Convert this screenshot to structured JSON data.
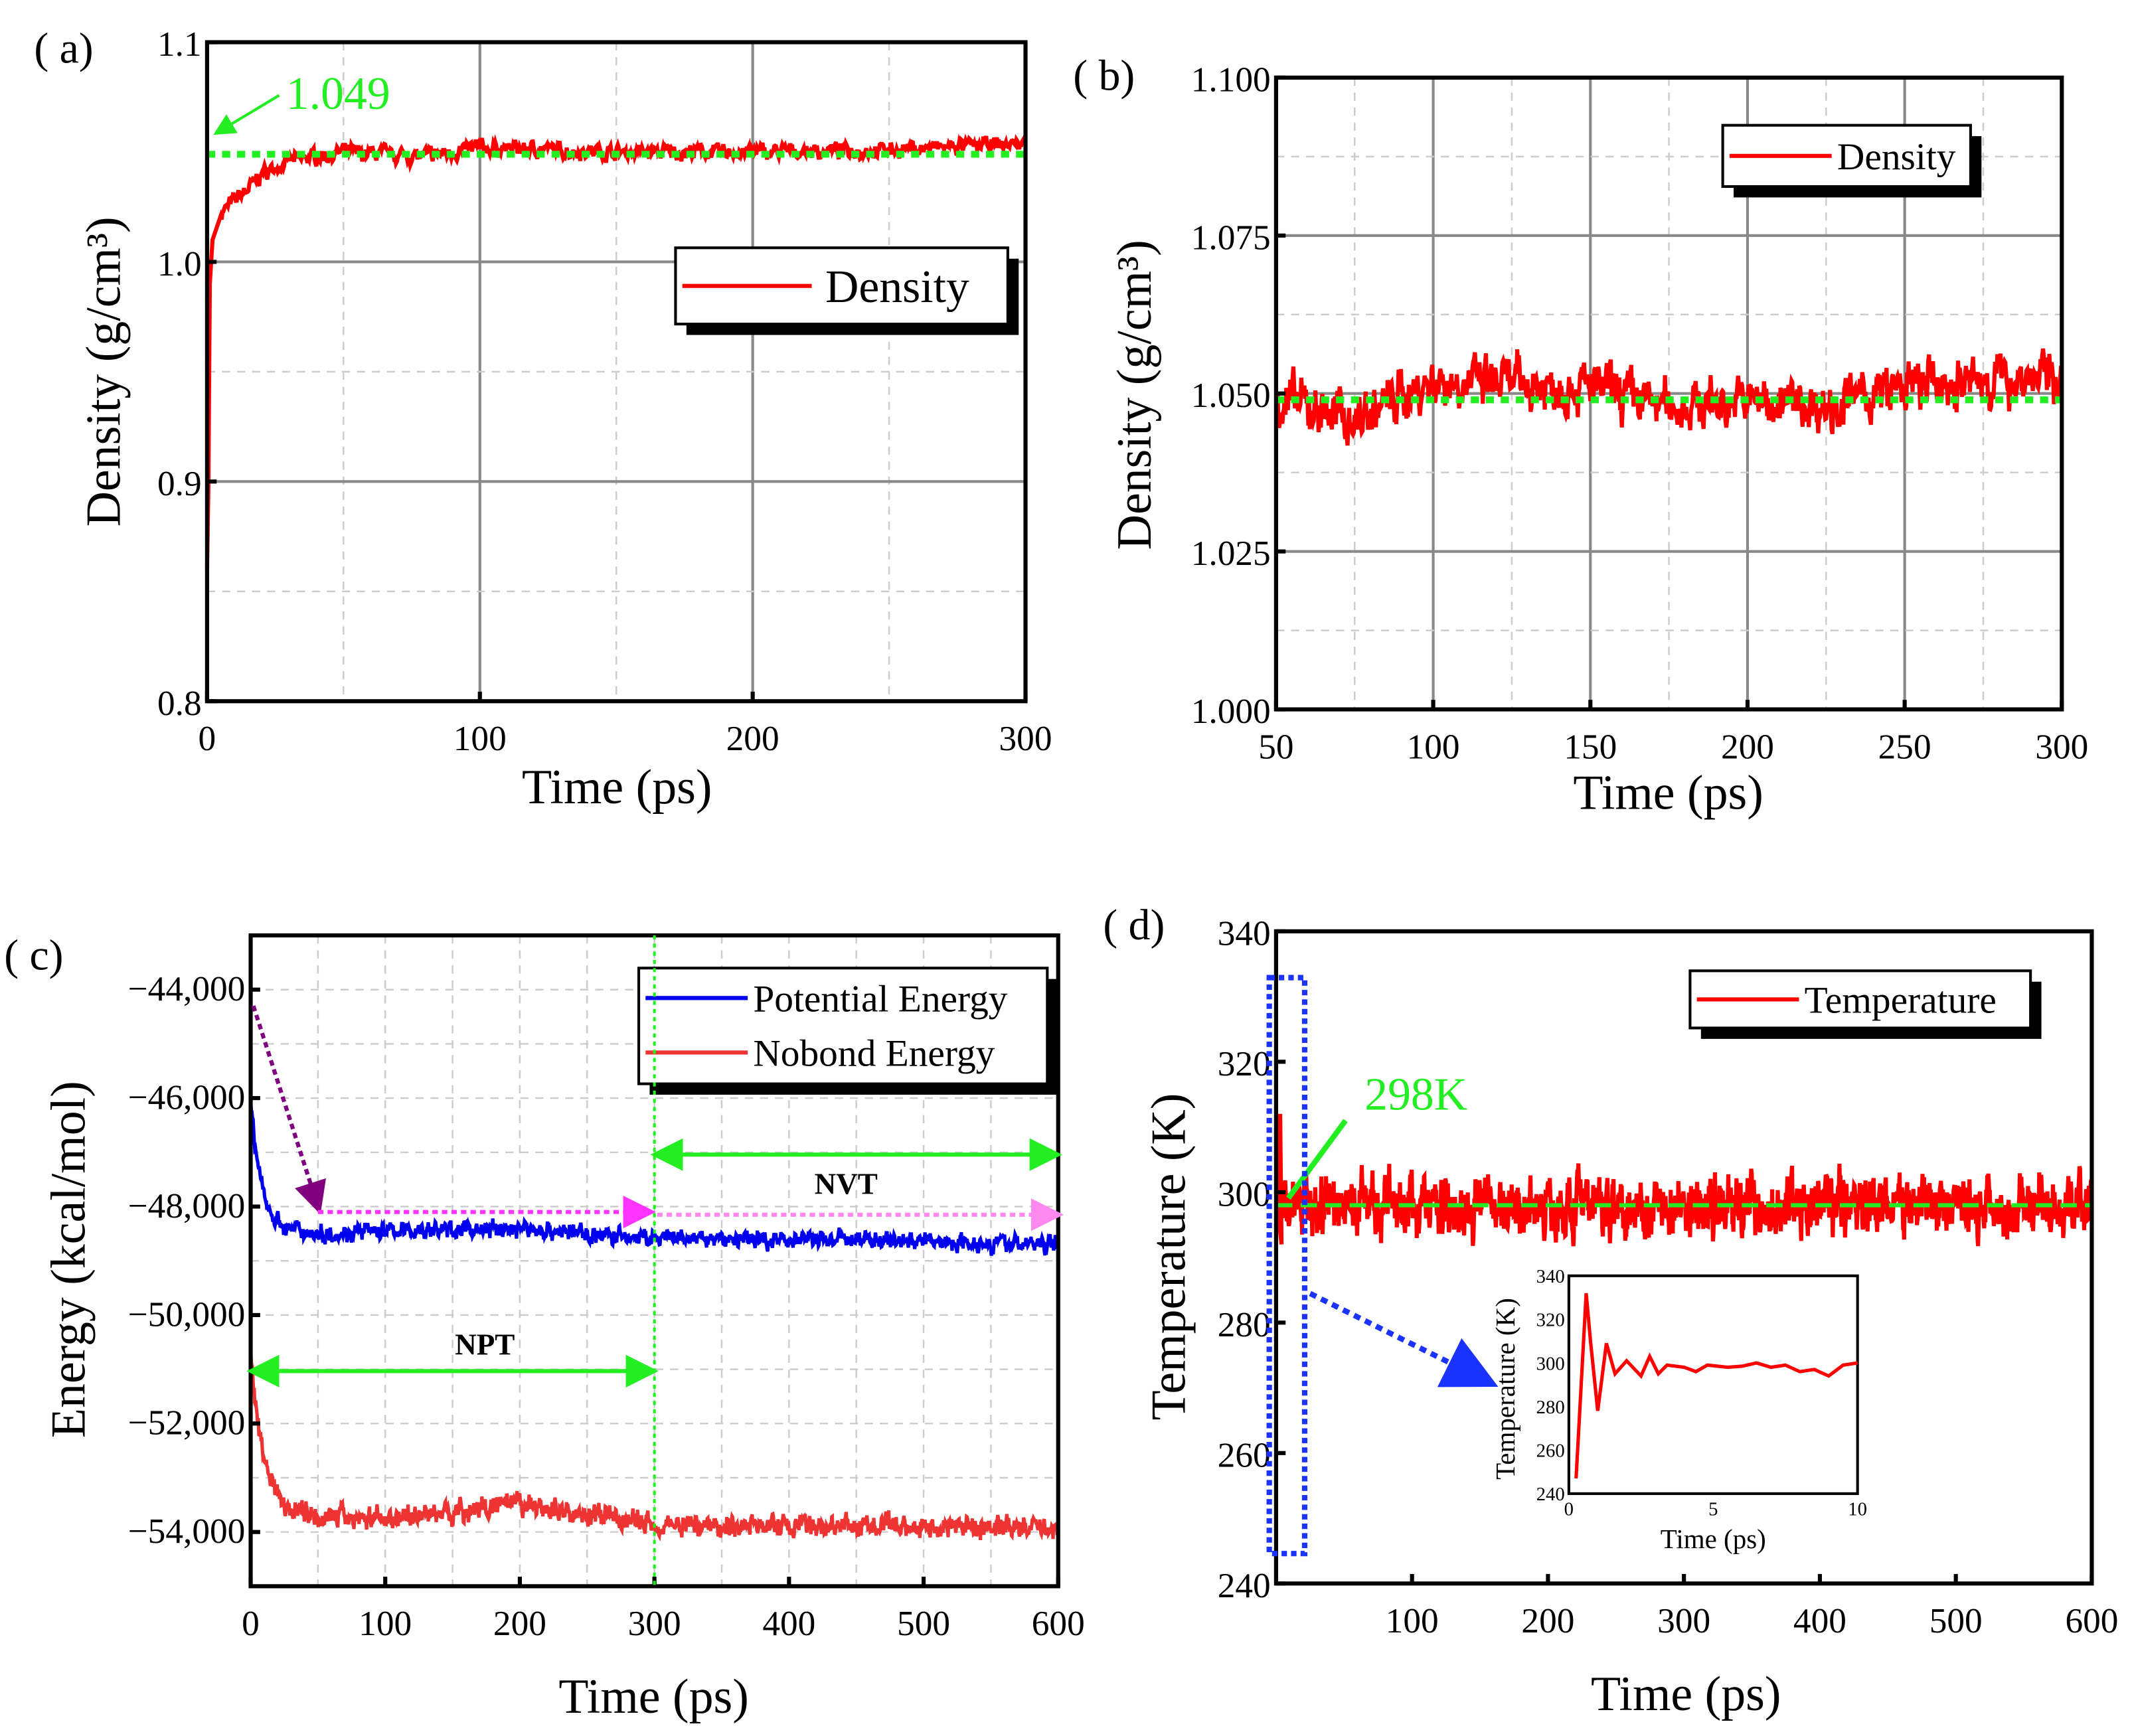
{
  "colors": {
    "density": "#ff0000",
    "ref": "#22ee22",
    "potential": "#0000ee",
    "nobond": "#ee3333",
    "purple": "#800080",
    "magenta": "#ff33ff",
    "pink": "#ff88ee",
    "blue_box": "#1a33ff"
  },
  "chart_data": [
    {
      "id": "a",
      "panel_label": "( a)",
      "type": "line",
      "xlabel": "Time (ps)",
      "ylabel": "Density (g/cm³)",
      "xlim": [
        0,
        300
      ],
      "ylim": [
        0.8,
        1.1
      ],
      "xticks": [
        0,
        100,
        200,
        300
      ],
      "yticks": [
        0.8,
        0.9,
        1.0,
        1.1
      ],
      "ytick_labels": [
        "0.8",
        "0.9",
        "1.0",
        "1.1"
      ],
      "legend": {
        "entries": [
          "Density"
        ],
        "position": "right-middle"
      },
      "reference": {
        "value": 1.049,
        "label": "1.049"
      },
      "series": [
        {
          "name": "Density",
          "noise": 0.0035,
          "points": [
            [
              0,
              0.86
            ],
            [
              0.5,
              0.9
            ],
            [
              1,
              0.99
            ],
            [
              2,
              1.01
            ],
            [
              5,
              1.022
            ],
            [
              10,
              1.028
            ],
            [
              15,
              1.033
            ],
            [
              20,
              1.04
            ],
            [
              30,
              1.046
            ],
            [
              50,
              1.05
            ],
            [
              80,
              1.048
            ],
            [
              100,
              1.052
            ],
            [
              150,
              1.05
            ],
            [
              200,
              1.05
            ],
            [
              250,
              1.051
            ],
            [
              300,
              1.054
            ]
          ]
        }
      ]
    },
    {
      "id": "b",
      "panel_label": "( b)",
      "type": "line",
      "xlabel": "Time (ps)",
      "ylabel": "Density (g/cm³)",
      "xlim": [
        50,
        300
      ],
      "ylim": [
        1.0,
        1.1
      ],
      "xticks": [
        50,
        100,
        150,
        200,
        250,
        300
      ],
      "yticks": [
        1.0,
        1.025,
        1.05,
        1.075,
        1.1
      ],
      "ytick_labels": [
        "1.000",
        "1.025",
        "1.050",
        "1.075",
        "1.100"
      ],
      "legend": {
        "entries": [
          "Density"
        ],
        "position": "top-right"
      },
      "reference": {
        "value": 1.049
      },
      "series": [
        {
          "name": "Density",
          "noise": 0.004,
          "points": [
            [
              50,
              1.049
            ],
            [
              75,
              1.046
            ],
            [
              100,
              1.052
            ],
            [
              150,
              1.051
            ],
            [
              175,
              1.048
            ],
            [
              200,
              1.049
            ],
            [
              225,
              1.048
            ],
            [
              250,
              1.051
            ],
            [
              300,
              1.053
            ]
          ]
        }
      ]
    },
    {
      "id": "c",
      "panel_label": "( c)",
      "type": "line",
      "xlabel": "Time (ps)",
      "ylabel": "Energy (kcal/mol)",
      "xlim": [
        0,
        600
      ],
      "ylim": [
        -55000,
        -43000
      ],
      "xticks": [
        0,
        100,
        200,
        300,
        400,
        500,
        600
      ],
      "yticks": [
        -54000,
        -52000,
        -50000,
        -48000,
        -46000,
        -44000
      ],
      "ytick_labels": [
        "−54,000",
        "−52,000",
        "−50,000",
        "−48,000",
        "−46,000",
        "−44,000"
      ],
      "legend": {
        "entries": [
          "Potential Energy",
          "Nobond Energy"
        ],
        "position": "top-right"
      },
      "annotations": {
        "npt": "NPT",
        "nvt": "NVT",
        "switch_time": 300
      },
      "series": [
        {
          "name": "Potential Energy",
          "noise": 160,
          "points": [
            [
              0,
              -46000
            ],
            [
              3,
              -46900
            ],
            [
              8,
              -47600
            ],
            [
              15,
              -48100
            ],
            [
              25,
              -48400
            ],
            [
              50,
              -48500
            ],
            [
              100,
              -48450
            ],
            [
              200,
              -48400
            ],
            [
              300,
              -48600
            ],
            [
              450,
              -48600
            ],
            [
              600,
              -48700
            ]
          ]
        },
        {
          "name": "Nobond Energy",
          "noise": 200,
          "points": [
            [
              0,
              -50600
            ],
            [
              5,
              -52000
            ],
            [
              12,
              -52800
            ],
            [
              25,
              -53500
            ],
            [
              50,
              -53700
            ],
            [
              100,
              -53750
            ],
            [
              200,
              -53500
            ],
            [
              300,
              -53850
            ],
            [
              450,
              -53900
            ],
            [
              600,
              -53900
            ]
          ]
        }
      ]
    },
    {
      "id": "d",
      "panel_label": "( d)",
      "type": "line",
      "xlabel": "Time (ps)",
      "ylabel": "Temperature (K)",
      "xlim": [
        0,
        600
      ],
      "ylim": [
        240,
        340
      ],
      "xticks": [
        100,
        200,
        300,
        400,
        500,
        600
      ],
      "yticks": [
        240,
        260,
        280,
        300,
        320,
        340
      ],
      "ytick_labels": [
        "240",
        "260",
        "280",
        "300",
        "320",
        "340"
      ],
      "legend": {
        "entries": [
          "Temperature"
        ],
        "position": "top-right"
      },
      "reference": {
        "value": 298,
        "label": "298K"
      },
      "series": [
        {
          "name": "Temperature",
          "noise": 4.5,
          "points": [
            [
              0,
              298
            ],
            [
              600,
              298
            ]
          ]
        }
      ],
      "inset": {
        "xlabel": "Time (ps)",
        "ylabel": "Temperature (K)",
        "xlim": [
          0,
          10
        ],
        "ylim": [
          240,
          340
        ],
        "xticks": [
          0,
          5,
          10
        ],
        "yticks": [
          240,
          260,
          280,
          300,
          320,
          340
        ],
        "points": [
          [
            0.25,
            247
          ],
          [
            0.6,
            332
          ],
          [
            0.75,
            310
          ],
          [
            1.0,
            278
          ],
          [
            1.3,
            309
          ],
          [
            1.6,
            295
          ],
          [
            2.0,
            301
          ],
          [
            2.5,
            294
          ],
          [
            2.8,
            303
          ],
          [
            3.1,
            295
          ],
          [
            3.4,
            299
          ],
          [
            4,
            298
          ],
          [
            4.4,
            296
          ],
          [
            4.8,
            299
          ],
          [
            5.5,
            298
          ],
          [
            6,
            298.5
          ],
          [
            6.5,
            300
          ],
          [
            7,
            298
          ],
          [
            7.5,
            299
          ],
          [
            8,
            296
          ],
          [
            8.5,
            297
          ],
          [
            9,
            294
          ],
          [
            9.5,
            299
          ],
          [
            10,
            300
          ]
        ]
      }
    }
  ]
}
